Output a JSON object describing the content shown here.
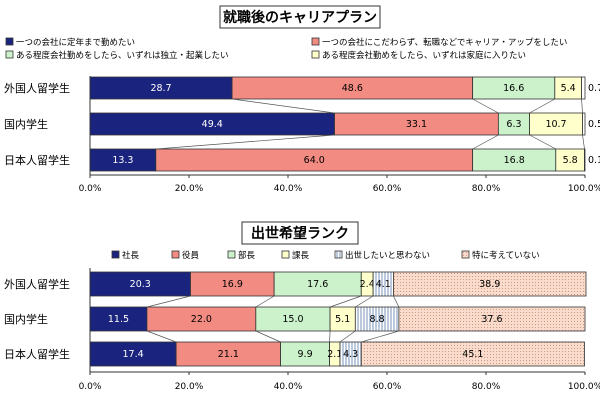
{
  "chart_data": [
    {
      "type": "bar",
      "orientation": "horizontal",
      "stacked": "percent",
      "title": "就職後のキャリアプラン",
      "categories": [
        "外国人留学生",
        "国内学生",
        "日本人留学生"
      ],
      "series": [
        {
          "name": "一つの会社に定年まで勤めたい",
          "values": [
            28.7,
            49.4,
            13.3
          ],
          "color": "#1a237e",
          "pattern": "solid"
        },
        {
          "name": "一つの会社にこだわらず、転職などでキャリア・アップをしたい",
          "values": [
            48.6,
            33.1,
            64.0
          ],
          "color": "#f28b82",
          "pattern": "solid"
        },
        {
          "name": "ある程度会社勤めをしたら、いずれは独立・起業したい",
          "values": [
            16.6,
            6.3,
            16.8
          ],
          "color": "#ccf2cc",
          "pattern": "solid"
        },
        {
          "name": "ある程度会社勤めをしたら、いずれは家庭に入りたい",
          "values": [
            5.4,
            10.7,
            5.8
          ],
          "color": "#ffffcc",
          "pattern": "solid"
        },
        {
          "name": "",
          "values": [
            0.7,
            0.5,
            0.1
          ],
          "color": "#ffffff",
          "pattern": "solid"
        }
      ],
      "bar_labels": [
        [
          "28.7",
          "48.6",
          "16.6",
          "5.4",
          "0.7"
        ],
        [
          "49.4",
          "33.1",
          "6.3",
          "10.7",
          "0.5"
        ],
        [
          "13.3",
          "64.0",
          "16.8",
          "5.8",
          "0.1"
        ]
      ],
      "xlim": [
        0,
        100
      ],
      "xticks": [
        "0.0%",
        "20.0%",
        "40.0%",
        "60.0%",
        "80.0%",
        "100.0%"
      ],
      "legend_position": "top",
      "grid": false
    },
    {
      "type": "bar",
      "orientation": "horizontal",
      "stacked": "percent",
      "title": "出世希望ランク",
      "categories": [
        "外国人留学生",
        "国内学生",
        "日本人留学生"
      ],
      "series": [
        {
          "name": "社長",
          "values": [
            20.3,
            11.5,
            17.4
          ],
          "color": "#1a237e",
          "pattern": "solid"
        },
        {
          "name": "役員",
          "values": [
            16.9,
            22.0,
            21.1
          ],
          "color": "#f28b82",
          "pattern": "solid"
        },
        {
          "name": "部長",
          "values": [
            17.6,
            15.0,
            9.9
          ],
          "color": "#ccf2cc",
          "pattern": "solid"
        },
        {
          "name": "課長",
          "values": [
            2.4,
            5.1,
            2.1
          ],
          "color": "#ffffcc",
          "pattern": "solid"
        },
        {
          "name": "出世したいと思わない",
          "values": [
            4.1,
            8.8,
            4.3
          ],
          "color": "#ffffff",
          "pattern": "vertical-lines"
        },
        {
          "name": "特に考えていない",
          "values": [
            38.9,
            37.6,
            45.1
          ],
          "color": "#f9dccb",
          "pattern": "dots"
        }
      ],
      "bar_labels": [
        [
          "20.3",
          "16.9",
          "17.6",
          "2.4",
          "4.1",
          "38.9"
        ],
        [
          "11.5",
          "22.0",
          "15.0",
          "5.1",
          "8.8",
          "37.6"
        ],
        [
          "17.4",
          "21.1",
          "9.9",
          "2.1",
          "4.3",
          "45.1"
        ]
      ],
      "xlim": [
        0,
        100
      ],
      "xticks": [
        "0.0%",
        "20.0%",
        "40.0%",
        "60.0%",
        "80.0%",
        "100.0%"
      ],
      "legend_position": "top",
      "grid": false
    }
  ]
}
